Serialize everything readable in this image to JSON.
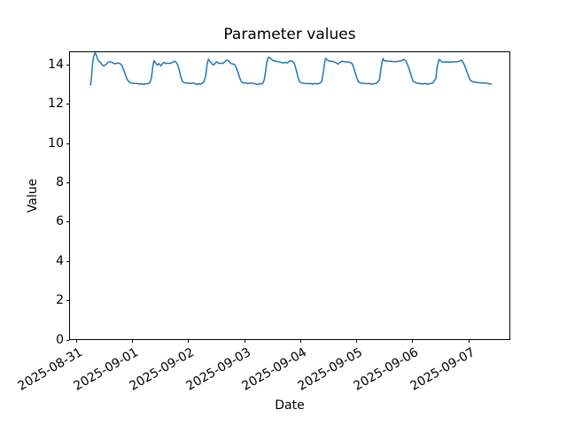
{
  "chart_data": {
    "type": "line",
    "title": "Parameter values",
    "xlabel": "Date",
    "ylabel": "Value",
    "grid": false,
    "legend": "none",
    "x_tick_labels": [
      "2025-08-31",
      "2025-09-01",
      "2025-09-02",
      "2025-09-03",
      "2025-09-04",
      "2025-09-05",
      "2025-09-06",
      "2025-09-07"
    ],
    "x_ticks_days": [
      0,
      1,
      2,
      3,
      4,
      5,
      6,
      7
    ],
    "y_ticks": [
      0,
      2,
      4,
      6,
      8,
      10,
      12,
      14
    ],
    "xlim_days": [
      -0.114,
      7.738
    ],
    "ylim": [
      0,
      14.64
    ],
    "x_unit": "days since 2025-08-31 00:00",
    "series": [
      {
        "name": "Parameter",
        "color": "#1f77b4",
        "line_width": 1.5,
        "points": [
          [
            0.261,
            12.95
          ],
          [
            0.276,
            13.29
          ],
          [
            0.292,
            13.89
          ],
          [
            0.313,
            14.37
          ],
          [
            0.344,
            14.6
          ],
          [
            0.371,
            14.41
          ],
          [
            0.392,
            14.22
          ],
          [
            0.419,
            14.13
          ],
          [
            0.446,
            14.07
          ],
          [
            0.471,
            13.96
          ],
          [
            0.502,
            13.93
          ],
          [
            0.54,
            14.01
          ],
          [
            0.572,
            14.11
          ],
          [
            0.608,
            14.13
          ],
          [
            0.645,
            14.1
          ],
          [
            0.683,
            14.04
          ],
          [
            0.714,
            14.04
          ],
          [
            0.75,
            14.07
          ],
          [
            0.787,
            14.04
          ],
          [
            0.818,
            13.96
          ],
          [
            0.85,
            13.74
          ],
          [
            0.882,
            13.47
          ],
          [
            0.913,
            13.24
          ],
          [
            0.945,
            13.11
          ],
          [
            0.987,
            13.05
          ],
          [
            1.04,
            13.03
          ],
          [
            1.093,
            13.03
          ],
          [
            1.145,
            12.99
          ],
          [
            1.177,
            13.02
          ],
          [
            1.209,
            12.97
          ],
          [
            1.24,
            13.02
          ],
          [
            1.283,
            13.02
          ],
          [
            1.314,
            13.06
          ],
          [
            1.346,
            13.29
          ],
          [
            1.371,
            13.89
          ],
          [
            1.39,
            14.19
          ],
          [
            1.419,
            14.07
          ],
          [
            1.45,
            13.96
          ],
          [
            1.482,
            14.04
          ],
          [
            1.514,
            13.92
          ],
          [
            1.545,
            14.04
          ],
          [
            1.577,
            14.1
          ],
          [
            1.609,
            14.04
          ],
          [
            1.64,
            14.07
          ],
          [
            1.672,
            14.04
          ],
          [
            1.703,
            14.08
          ],
          [
            1.735,
            14.11
          ],
          [
            1.767,
            14.16
          ],
          [
            1.798,
            14.07
          ],
          [
            1.82,
            13.92
          ],
          [
            1.846,
            13.66
          ],
          [
            1.872,
            13.36
          ],
          [
            1.899,
            13.13
          ],
          [
            1.931,
            13.06
          ],
          [
            1.978,
            13.05
          ],
          [
            2.03,
            13.03
          ],
          [
            2.082,
            13.05
          ],
          [
            2.125,
            13.02
          ],
          [
            2.157,
            12.97
          ],
          [
            2.188,
            13.02
          ],
          [
            2.22,
            12.99
          ],
          [
            2.251,
            13.03
          ],
          [
            2.283,
            13.11
          ],
          [
            2.315,
            13.44
          ],
          [
            2.341,
            14.04
          ],
          [
            2.362,
            14.26
          ],
          [
            2.389,
            14.16
          ],
          [
            2.42,
            14.04
          ],
          [
            2.452,
            13.96
          ],
          [
            2.484,
            14.07
          ],
          [
            2.515,
            14.13
          ],
          [
            2.547,
            14.04
          ],
          [
            2.578,
            14.07
          ],
          [
            2.61,
            14.04
          ],
          [
            2.642,
            14.1
          ],
          [
            2.673,
            14.19
          ],
          [
            2.705,
            14.22
          ],
          [
            2.736,
            14.13
          ],
          [
            2.768,
            14.04
          ],
          [
            2.82,
            14.01
          ],
          [
            2.852,
            13.89
          ],
          [
            2.883,
            13.66
          ],
          [
            2.915,
            13.36
          ],
          [
            2.946,
            13.13
          ],
          [
            2.978,
            13.06
          ],
          [
            3.03,
            13.05
          ],
          [
            3.084,
            13.03
          ],
          [
            3.136,
            13.05
          ],
          [
            3.188,
            13.02
          ],
          [
            3.242,
            12.97
          ],
          [
            3.274,
            13.02
          ],
          [
            3.305,
            13.0
          ],
          [
            3.337,
            13.06
          ],
          [
            3.357,
            13.21
          ],
          [
            3.378,
            13.58
          ],
          [
            3.4,
            14.04
          ],
          [
            3.421,
            14.31
          ],
          [
            3.441,
            14.37
          ],
          [
            3.489,
            14.26
          ],
          [
            3.52,
            14.19
          ],
          [
            3.563,
            14.16
          ],
          [
            3.606,
            14.13
          ],
          [
            3.647,
            14.11
          ],
          [
            3.689,
            14.07
          ],
          [
            3.732,
            14.1
          ],
          [
            3.773,
            14.07
          ],
          [
            3.805,
            14.16
          ],
          [
            3.836,
            14.19
          ],
          [
            3.868,
            14.13
          ],
          [
            3.89,
            14.07
          ],
          [
            3.911,
            13.89
          ],
          [
            3.937,
            13.62
          ],
          [
            3.963,
            13.31
          ],
          [
            3.989,
            13.11
          ],
          [
            4.026,
            13.05
          ],
          [
            4.079,
            13.03
          ],
          [
            4.131,
            13.02
          ],
          [
            4.184,
            13.03
          ],
          [
            4.226,
            12.99
          ],
          [
            4.258,
            13.03
          ],
          [
            4.3,
            13.0
          ],
          [
            4.341,
            13.03
          ],
          [
            4.384,
            13.13
          ],
          [
            4.416,
            13.66
          ],
          [
            4.436,
            14.11
          ],
          [
            4.452,
            14.31
          ],
          [
            4.494,
            14.19
          ],
          [
            4.547,
            14.16
          ],
          [
            4.6,
            14.13
          ],
          [
            4.641,
            14.08
          ],
          [
            4.673,
            14.01
          ],
          [
            4.705,
            14.1
          ],
          [
            4.747,
            14.16
          ],
          [
            4.79,
            14.13
          ],
          [
            4.826,
            14.13
          ],
          [
            4.874,
            14.11
          ],
          [
            4.916,
            14.07
          ],
          [
            4.948,
            13.89
          ],
          [
            4.98,
            13.58
          ],
          [
            5.011,
            13.29
          ],
          [
            5.037,
            13.11
          ],
          [
            5.075,
            13.06
          ],
          [
            5.127,
            13.03
          ],
          [
            5.179,
            13.02
          ],
          [
            5.233,
            13.03
          ],
          [
            5.274,
            12.99
          ],
          [
            5.316,
            13.02
          ],
          [
            5.359,
            13.03
          ],
          [
            5.411,
            13.21
          ],
          [
            5.438,
            13.74
          ],
          [
            5.463,
            14.19
          ],
          [
            5.479,
            14.29
          ],
          [
            5.495,
            14.19
          ],
          [
            5.549,
            14.16
          ],
          [
            5.601,
            14.16
          ],
          [
            5.653,
            14.14
          ],
          [
            5.707,
            14.14
          ],
          [
            5.759,
            14.16
          ],
          [
            5.811,
            14.19
          ],
          [
            5.849,
            14.25
          ],
          [
            5.881,
            14.19
          ],
          [
            5.917,
            13.96
          ],
          [
            5.954,
            13.66
          ],
          [
            5.985,
            13.36
          ],
          [
            6.017,
            13.13
          ],
          [
            6.075,
            13.05
          ],
          [
            6.127,
            13.03
          ],
          [
            6.181,
            13.0
          ],
          [
            6.233,
            13.03
          ],
          [
            6.27,
            12.99
          ],
          [
            6.312,
            13.02
          ],
          [
            6.364,
            13.05
          ],
          [
            6.418,
            13.29
          ],
          [
            6.443,
            13.89
          ],
          [
            6.465,
            14.16
          ],
          [
            6.481,
            14.26
          ],
          [
            6.522,
            14.13
          ],
          [
            6.576,
            14.11
          ],
          [
            6.628,
            14.13
          ],
          [
            6.68,
            14.11
          ],
          [
            6.734,
            14.13
          ],
          [
            6.786,
            14.13
          ],
          [
            6.838,
            14.16
          ],
          [
            6.876,
            14.22
          ],
          [
            6.917,
            14.04
          ],
          [
            6.949,
            13.81
          ],
          [
            6.98,
            13.56
          ],
          [
            7.012,
            13.31
          ],
          [
            7.043,
            13.16
          ],
          [
            7.102,
            13.09
          ],
          [
            7.154,
            13.08
          ],
          [
            7.208,
            13.06
          ],
          [
            7.26,
            13.05
          ],
          [
            7.312,
            13.05
          ],
          [
            7.365,
            13.02
          ],
          [
            7.406,
            12.99
          ]
        ]
      }
    ],
    "axis_color": "#000000"
  }
}
